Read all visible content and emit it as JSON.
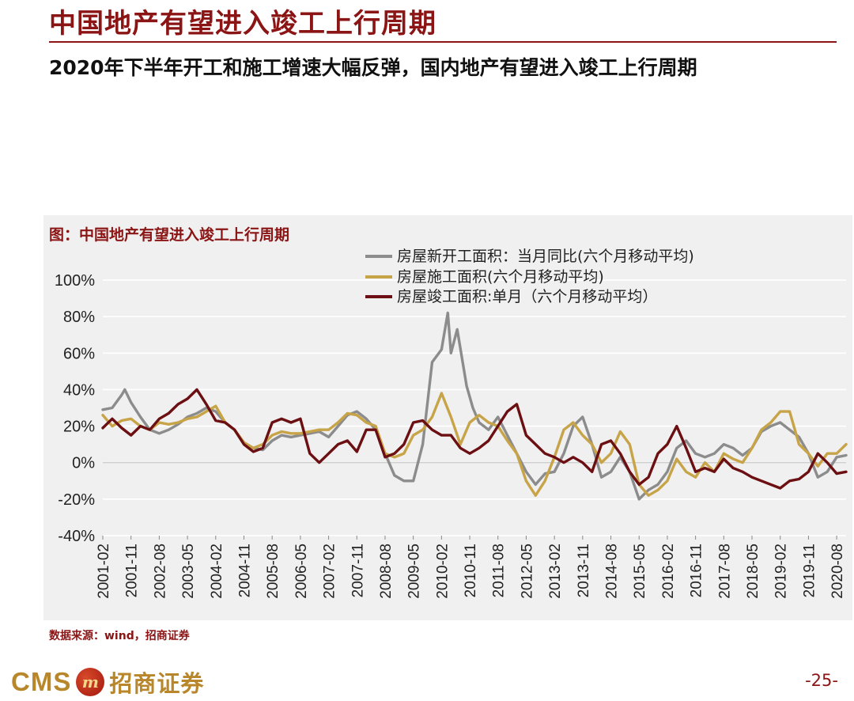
{
  "page": {
    "title": "中国地产有望进入竣工上行周期",
    "subtitle": "2020年下半年开工和施工增速大幅反弹，国内地产有望进入竣工上行周期",
    "source": "数据来源：wind，招商证券",
    "page_number": "-25-",
    "logo_text": "CMS",
    "logo_badge": "m",
    "logo_cn": "招商证券"
  },
  "colors": {
    "accent": "#8b1414",
    "gold": "#b8862b",
    "series_new": "#8c8c8c",
    "series_construction": "#c8a448",
    "series_completion": "#6b0f12"
  },
  "chart_data": {
    "type": "line",
    "title": "图：中国地产有望进入竣工上行周期",
    "xlabel": "",
    "ylabel": "",
    "ylim": [
      -40,
      100
    ],
    "yticks": [
      -40,
      -20,
      0,
      20,
      40,
      60,
      80,
      100
    ],
    "ytick_labels": [
      "-40%",
      "-20%",
      "0%",
      "20%",
      "40%",
      "60%",
      "80%",
      "100%"
    ],
    "grid": true,
    "legend_position": "top-center",
    "x_start": "2001-02",
    "x_end": "2020-11",
    "xtick_labels": [
      "2001-02",
      "2001-11",
      "2002-08",
      "2003-05",
      "2004-02",
      "2004-11",
      "2005-08",
      "2006-05",
      "2007-02",
      "2007-11",
      "2008-08",
      "2009-05",
      "2010-02",
      "2010-11",
      "2011-08",
      "2012-05",
      "2013-02",
      "2013-11",
      "2014-08",
      "2015-05",
      "2016-02",
      "2016-11",
      "2017-08",
      "2018-05",
      "2019-02",
      "2019-11",
      "2020-08"
    ],
    "series": [
      {
        "name": "房屋新开工面积：当月同比(六个月移动平均)",
        "color": "#8c8c8c",
        "points": [
          [
            "2001-02",
            29
          ],
          [
            "2001-05",
            30
          ],
          [
            "2001-08",
            37
          ],
          [
            "2001-09",
            40
          ],
          [
            "2001-11",
            33
          ],
          [
            "2002-02",
            25
          ],
          [
            "2002-05",
            18
          ],
          [
            "2002-08",
            16
          ],
          [
            "2002-11",
            18
          ],
          [
            "2003-02",
            21
          ],
          [
            "2003-05",
            25
          ],
          [
            "2003-08",
            27
          ],
          [
            "2003-11",
            30
          ],
          [
            "2004-02",
            28
          ],
          [
            "2004-05",
            22
          ],
          [
            "2004-08",
            18
          ],
          [
            "2004-11",
            11
          ],
          [
            "2005-02",
            8
          ],
          [
            "2005-05",
            7
          ],
          [
            "2005-08",
            12
          ],
          [
            "2005-11",
            15
          ],
          [
            "2006-02",
            14
          ],
          [
            "2006-05",
            15
          ],
          [
            "2006-08",
            16
          ],
          [
            "2006-11",
            17
          ],
          [
            "2007-02",
            14
          ],
          [
            "2007-05",
            20
          ],
          [
            "2007-08",
            26
          ],
          [
            "2007-11",
            28
          ],
          [
            "2008-02",
            24
          ],
          [
            "2008-05",
            18
          ],
          [
            "2008-08",
            5
          ],
          [
            "2008-11",
            -7
          ],
          [
            "2009-02",
            -10
          ],
          [
            "2009-05",
            -10
          ],
          [
            "2009-08",
            10
          ],
          [
            "2009-11",
            55
          ],
          [
            "2010-02",
            62
          ],
          [
            "2010-04",
            82
          ],
          [
            "2010-05",
            60
          ],
          [
            "2010-07",
            73
          ],
          [
            "2010-10",
            42
          ],
          [
            "2010-12",
            30
          ],
          [
            "2011-02",
            22
          ],
          [
            "2011-05",
            18
          ],
          [
            "2011-08",
            25
          ],
          [
            "2011-11",
            15
          ],
          [
            "2012-02",
            5
          ],
          [
            "2012-05",
            -5
          ],
          [
            "2012-08",
            -12
          ],
          [
            "2012-11",
            -6
          ],
          [
            "2013-02",
            -5
          ],
          [
            "2013-05",
            5
          ],
          [
            "2013-08",
            20
          ],
          [
            "2013-11",
            25
          ],
          [
            "2014-02",
            10
          ],
          [
            "2014-05",
            -8
          ],
          [
            "2014-08",
            -5
          ],
          [
            "2014-11",
            3
          ],
          [
            "2015-02",
            -5
          ],
          [
            "2015-05",
            -20
          ],
          [
            "2015-08",
            -15
          ],
          [
            "2015-11",
            -12
          ],
          [
            "2016-02",
            -5
          ],
          [
            "2016-05",
            8
          ],
          [
            "2016-08",
            12
          ],
          [
            "2016-11",
            5
          ],
          [
            "2017-02",
            3
          ],
          [
            "2017-05",
            5
          ],
          [
            "2017-08",
            10
          ],
          [
            "2017-11",
            8
          ],
          [
            "2018-02",
            4
          ],
          [
            "2018-05",
            8
          ],
          [
            "2018-08",
            17
          ],
          [
            "2018-11",
            20
          ],
          [
            "2019-02",
            22
          ],
          [
            "2019-05",
            18
          ],
          [
            "2019-08",
            14
          ],
          [
            "2019-11",
            5
          ],
          [
            "2020-02",
            -8
          ],
          [
            "2020-05",
            -5
          ],
          [
            "2020-08",
            3
          ],
          [
            "2020-11",
            4
          ]
        ]
      },
      {
        "name": "房屋施工面积(六个月移动平均)",
        "color": "#c8a448",
        "points": [
          [
            "2001-02",
            26
          ],
          [
            "2001-05",
            20
          ],
          [
            "2001-08",
            23
          ],
          [
            "2001-11",
            24
          ],
          [
            "2002-02",
            20
          ],
          [
            "2002-05",
            18
          ],
          [
            "2002-08",
            22
          ],
          [
            "2002-11",
            21
          ],
          [
            "2003-02",
            22
          ],
          [
            "2003-05",
            24
          ],
          [
            "2003-08",
            25
          ],
          [
            "2003-11",
            28
          ],
          [
            "2004-02",
            31
          ],
          [
            "2004-05",
            22
          ],
          [
            "2004-08",
            18
          ],
          [
            "2004-11",
            11
          ],
          [
            "2005-02",
            8
          ],
          [
            "2005-05",
            10
          ],
          [
            "2005-08",
            15
          ],
          [
            "2005-11",
            17
          ],
          [
            "2006-02",
            16
          ],
          [
            "2006-05",
            16
          ],
          [
            "2006-08",
            17
          ],
          [
            "2006-11",
            18
          ],
          [
            "2007-02",
            18
          ],
          [
            "2007-05",
            22
          ],
          [
            "2007-08",
            27
          ],
          [
            "2007-11",
            26
          ],
          [
            "2008-02",
            22
          ],
          [
            "2008-05",
            20
          ],
          [
            "2008-08",
            5
          ],
          [
            "2008-11",
            3
          ],
          [
            "2009-02",
            5
          ],
          [
            "2009-05",
            15
          ],
          [
            "2009-08",
            18
          ],
          [
            "2009-11",
            25
          ],
          [
            "2010-02",
            38
          ],
          [
            "2010-05",
            25
          ],
          [
            "2010-08",
            10
          ],
          [
            "2010-11",
            22
          ],
          [
            "2011-02",
            26
          ],
          [
            "2011-05",
            22
          ],
          [
            "2011-08",
            20
          ],
          [
            "2011-11",
            12
          ],
          [
            "2012-02",
            5
          ],
          [
            "2012-05",
            -10
          ],
          [
            "2012-08",
            -18
          ],
          [
            "2012-11",
            -10
          ],
          [
            "2013-02",
            3
          ],
          [
            "2013-05",
            18
          ],
          [
            "2013-08",
            22
          ],
          [
            "2013-11",
            15
          ],
          [
            "2014-02",
            10
          ],
          [
            "2014-05",
            0
          ],
          [
            "2014-08",
            5
          ],
          [
            "2014-11",
            17
          ],
          [
            "2015-02",
            10
          ],
          [
            "2015-05",
            -12
          ],
          [
            "2015-08",
            -18
          ],
          [
            "2015-11",
            -15
          ],
          [
            "2016-02",
            -10
          ],
          [
            "2016-05",
            2
          ],
          [
            "2016-08",
            -5
          ],
          [
            "2016-11",
            -8
          ],
          [
            "2017-02",
            0
          ],
          [
            "2017-05",
            -5
          ],
          [
            "2017-08",
            5
          ],
          [
            "2017-11",
            2
          ],
          [
            "2018-02",
            0
          ],
          [
            "2018-05",
            8
          ],
          [
            "2018-08",
            18
          ],
          [
            "2018-11",
            22
          ],
          [
            "2019-02",
            28
          ],
          [
            "2019-05",
            28
          ],
          [
            "2019-08",
            10
          ],
          [
            "2019-11",
            5
          ],
          [
            "2020-02",
            -2
          ],
          [
            "2020-05",
            5
          ],
          [
            "2020-08",
            5
          ],
          [
            "2020-11",
            10
          ]
        ]
      },
      {
        "name": "房屋竣工面积:单月（六个月移动平均）",
        "color": "#6b0f12",
        "points": [
          [
            "2001-02",
            19
          ],
          [
            "2001-05",
            24
          ],
          [
            "2001-08",
            19
          ],
          [
            "2001-11",
            15
          ],
          [
            "2002-02",
            20
          ],
          [
            "2002-05",
            18
          ],
          [
            "2002-08",
            24
          ],
          [
            "2002-11",
            27
          ],
          [
            "2003-02",
            32
          ],
          [
            "2003-05",
            35
          ],
          [
            "2003-08",
            40
          ],
          [
            "2003-11",
            32
          ],
          [
            "2004-02",
            23
          ],
          [
            "2004-05",
            22
          ],
          [
            "2004-08",
            18
          ],
          [
            "2004-11",
            10
          ],
          [
            "2005-02",
            6
          ],
          [
            "2005-05",
            8
          ],
          [
            "2005-08",
            22
          ],
          [
            "2005-11",
            24
          ],
          [
            "2006-02",
            22
          ],
          [
            "2006-05",
            24
          ],
          [
            "2006-08",
            5
          ],
          [
            "2006-11",
            0
          ],
          [
            "2007-02",
            5
          ],
          [
            "2007-05",
            10
          ],
          [
            "2007-08",
            12
          ],
          [
            "2007-11",
            6
          ],
          [
            "2008-02",
            18
          ],
          [
            "2008-05",
            18
          ],
          [
            "2008-08",
            3
          ],
          [
            "2008-11",
            5
          ],
          [
            "2009-02",
            10
          ],
          [
            "2009-05",
            22
          ],
          [
            "2009-08",
            23
          ],
          [
            "2009-11",
            18
          ],
          [
            "2010-02",
            15
          ],
          [
            "2010-05",
            15
          ],
          [
            "2010-08",
            8
          ],
          [
            "2010-11",
            5
          ],
          [
            "2011-02",
            8
          ],
          [
            "2011-05",
            12
          ],
          [
            "2011-08",
            20
          ],
          [
            "2011-11",
            28
          ],
          [
            "2012-02",
            32
          ],
          [
            "2012-05",
            15
          ],
          [
            "2012-08",
            10
          ],
          [
            "2012-11",
            5
          ],
          [
            "2013-02",
            3
          ],
          [
            "2013-05",
            0
          ],
          [
            "2013-08",
            3
          ],
          [
            "2013-11",
            0
          ],
          [
            "2014-02",
            -5
          ],
          [
            "2014-05",
            10
          ],
          [
            "2014-08",
            12
          ],
          [
            "2014-11",
            5
          ],
          [
            "2015-02",
            -5
          ],
          [
            "2015-05",
            -12
          ],
          [
            "2015-08",
            -8
          ],
          [
            "2015-11",
            5
          ],
          [
            "2016-02",
            10
          ],
          [
            "2016-05",
            20
          ],
          [
            "2016-08",
            8
          ],
          [
            "2016-11",
            -5
          ],
          [
            "2017-02",
            -3
          ],
          [
            "2017-05",
            -5
          ],
          [
            "2017-08",
            2
          ],
          [
            "2017-11",
            -3
          ],
          [
            "2018-02",
            -5
          ],
          [
            "2018-05",
            -8
          ],
          [
            "2018-08",
            -10
          ],
          [
            "2018-11",
            -12
          ],
          [
            "2019-02",
            -14
          ],
          [
            "2019-05",
            -10
          ],
          [
            "2019-08",
            -9
          ],
          [
            "2019-11",
            -5
          ],
          [
            "2020-02",
            5
          ],
          [
            "2020-05",
            0
          ],
          [
            "2020-08",
            -6
          ],
          [
            "2020-11",
            -5
          ]
        ]
      }
    ]
  }
}
